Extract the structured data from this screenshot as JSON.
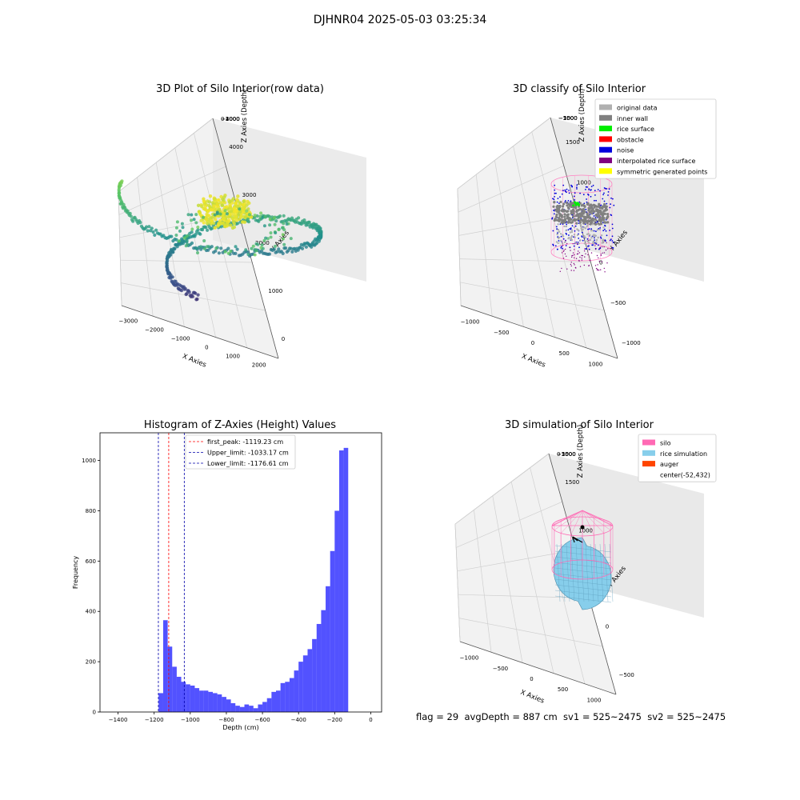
{
  "figure": {
    "suptitle": "DJHNR04 2025-05-03 03:25:34"
  },
  "chart_data": [
    {
      "type": "scatter",
      "title": "3D Plot of Silo Interior(row data)",
      "xlabel": "X Axies",
      "ylabel": "Y Axies",
      "zlabel": "Z Axies (Depth)",
      "xticks": [
        "−3000",
        "−2000",
        "−1000",
        "0",
        "1000",
        "2000"
      ],
      "yticks": [
        "0",
        "1000",
        "2000",
        "3000",
        "4000"
      ],
      "zticks": [
        "0",
        "−1000",
        "−2000",
        "−3000",
        "−4000"
      ],
      "colormap": "viridis",
      "grid": true
    },
    {
      "type": "scatter",
      "title": "3D classify of Silo Interior",
      "xlabel": "X Axies",
      "ylabel": "Y Axies",
      "zlabel": "Z Axies (Depth)",
      "xticks": [
        "−1000",
        "−500",
        "0",
        "500",
        "1000"
      ],
      "yticks": [
        "−1000",
        "−500",
        "0",
        "500",
        "1000",
        "1500"
      ],
      "zticks": [
        "−500",
        "−1000",
        "−1500",
        "−2000"
      ],
      "legend_position": "top-right",
      "legend": [
        {
          "label": "original data",
          "color": "#b0b0b0"
        },
        {
          "label": "inner wall",
          "color": "#808080"
        },
        {
          "label": "rice surface",
          "color": "#00ee00"
        },
        {
          "label": "obstacle",
          "color": "#ff0000"
        },
        {
          "label": "noise",
          "color": "#0000dd"
        },
        {
          "label": "interpolated rice surface",
          "color": "#800080"
        },
        {
          "label": "symmetric generated points",
          "color": "#ffff00"
        }
      ],
      "grid": true
    },
    {
      "type": "bar",
      "subtype": "histogram",
      "title": "Histogram of Z-Axies (Height) Values",
      "xlabel": "Depth (cm)",
      "ylabel": "Frequency",
      "xlim": [
        -1500,
        60
      ],
      "ylim": [
        0,
        1110
      ],
      "xticks": [
        -1400,
        -1200,
        -1000,
        -800,
        -600,
        -400,
        -200,
        0
      ],
      "yticks": [
        0,
        200,
        400,
        600,
        800,
        1000
      ],
      "bin_width": 25,
      "bins": [
        [
          -1175,
          75
        ],
        [
          -1150,
          365
        ],
        [
          -1125,
          260
        ],
        [
          -1100,
          180
        ],
        [
          -1075,
          140
        ],
        [
          -1050,
          120
        ],
        [
          -1025,
          110
        ],
        [
          -1000,
          105
        ],
        [
          -975,
          95
        ],
        [
          -950,
          85
        ],
        [
          -925,
          85
        ],
        [
          -900,
          80
        ],
        [
          -875,
          75
        ],
        [
          -850,
          70
        ],
        [
          -825,
          60
        ],
        [
          -800,
          50
        ],
        [
          -775,
          35
        ],
        [
          -750,
          25
        ],
        [
          -725,
          20
        ],
        [
          -700,
          30
        ],
        [
          -675,
          25
        ],
        [
          -650,
          15
        ],
        [
          -625,
          30
        ],
        [
          -600,
          40
        ],
        [
          -575,
          55
        ],
        [
          -550,
          80
        ],
        [
          -525,
          85
        ],
        [
          -500,
          115
        ],
        [
          -475,
          120
        ],
        [
          -450,
          135
        ],
        [
          -425,
          165
        ],
        [
          -400,
          200
        ],
        [
          -375,
          225
        ],
        [
          -350,
          250
        ],
        [
          -325,
          290
        ],
        [
          -300,
          350
        ],
        [
          -275,
          405
        ],
        [
          -250,
          500
        ],
        [
          -225,
          640
        ],
        [
          -200,
          800
        ],
        [
          -175,
          1040
        ],
        [
          -150,
          1050
        ]
      ],
      "bar_color": "#0000ff",
      "vlines": [
        {
          "label": "first_peak: -1119.23 cm",
          "value": -1119.23,
          "color": "#ff0000"
        },
        {
          "label": "Upper_limit: -1033.17 cm",
          "value": -1033.17,
          "color": "#0000aa"
        },
        {
          "label": "Lower_limit: -1176.61 cm",
          "value": -1176.61,
          "color": "#0000aa"
        }
      ],
      "legend_position": "top-center"
    },
    {
      "type": "scatter",
      "title": "3D simulation of Silo Interior",
      "xlabel": "X Axies",
      "ylabel": "Y Axies",
      "zlabel": "Z Axies (Depth)",
      "xticks": [
        "−1000",
        "−500",
        "0",
        "500",
        "1000"
      ],
      "yticks": [
        "−500",
        "0",
        "500",
        "1000",
        "1500"
      ],
      "zticks": [
        "0",
        "−500",
        "−1000",
        "−1500",
        "−2000"
      ],
      "legend_position": "top-right",
      "legend": [
        {
          "label": "silo",
          "color": "#ff69b4"
        },
        {
          "label": "rice simulation",
          "color": "#87ceeb"
        },
        {
          "label": "auger",
          "color": "#ff4500"
        },
        {
          "label": "center(-52,432)",
          "color": ""
        }
      ],
      "grid": true
    }
  ],
  "footer": {
    "text": "flag = 29  avgDepth = 887 cm  sv1 = 525~2475  sv2 = 525~2475"
  }
}
